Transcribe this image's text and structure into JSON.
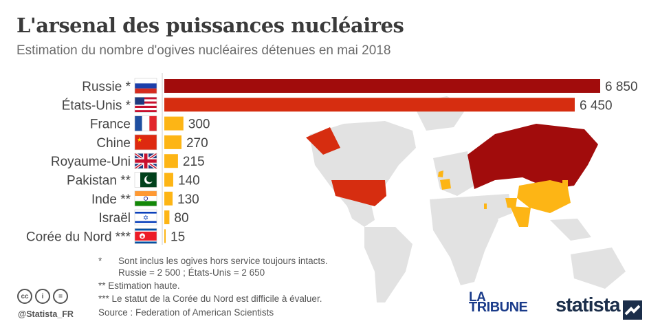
{
  "header": {
    "title": "L'arsenal des puissances nucléaires",
    "subtitle": "Estimation du nombre d'ogives nucléaires détenues en mai 2018"
  },
  "colors": {
    "russia": "#a10c0c",
    "usa": "#d62d10",
    "others": "#fdb515",
    "map_land": "#e2e2e2",
    "map_russia": "#a10c0c",
    "map_usa": "#d62d10",
    "map_others": "#fdb515"
  },
  "chart_data": {
    "type": "bar",
    "orientation": "horizontal",
    "title": "L'arsenal des puissances nucléaires",
    "subtitle": "Estimation du nombre d'ogives nucléaires détenues en mai 2018",
    "categories": [
      "Russie *",
      "États-Unis *",
      "France",
      "Chine",
      "Royaume-Uni",
      "Pakistan **",
      "Inde **",
      "Israël",
      "Corée du Nord ***"
    ],
    "value_labels": [
      "6 850",
      "6 450",
      "300",
      "270",
      "215",
      "140",
      "130",
      "80",
      "15"
    ],
    "values": [
      6850,
      6450,
      300,
      270,
      215,
      140,
      130,
      80,
      15
    ],
    "flags": [
      "russia-flag",
      "usa-flag",
      "france-flag",
      "china-flag",
      "uk-flag",
      "pakistan-flag",
      "india-flag",
      "israel-flag",
      "north-korea-flag"
    ],
    "xlim": [
      0,
      6850
    ],
    "grid": false,
    "legend": "none"
  },
  "footnotes": {
    "note1_marker": "*",
    "note1_line1": "Sont inclus les ogives hors service toujours intacts.",
    "note1_line2": "Russie = 2 500 ; États-Unis = 2 650",
    "note2": "**   Estimation haute.",
    "note3": "*** Le statut de la Corée du Nord est difficile à évaluer.",
    "source": "Source : Federation of American Scientists"
  },
  "branding": {
    "handle": "@Statista_FR",
    "tribune_line1": "LA",
    "tribune_line2": "TRIBUNE",
    "statista": "statista",
    "cc_icons": [
      "cc-icon",
      "by-icon",
      "nd-icon"
    ]
  }
}
